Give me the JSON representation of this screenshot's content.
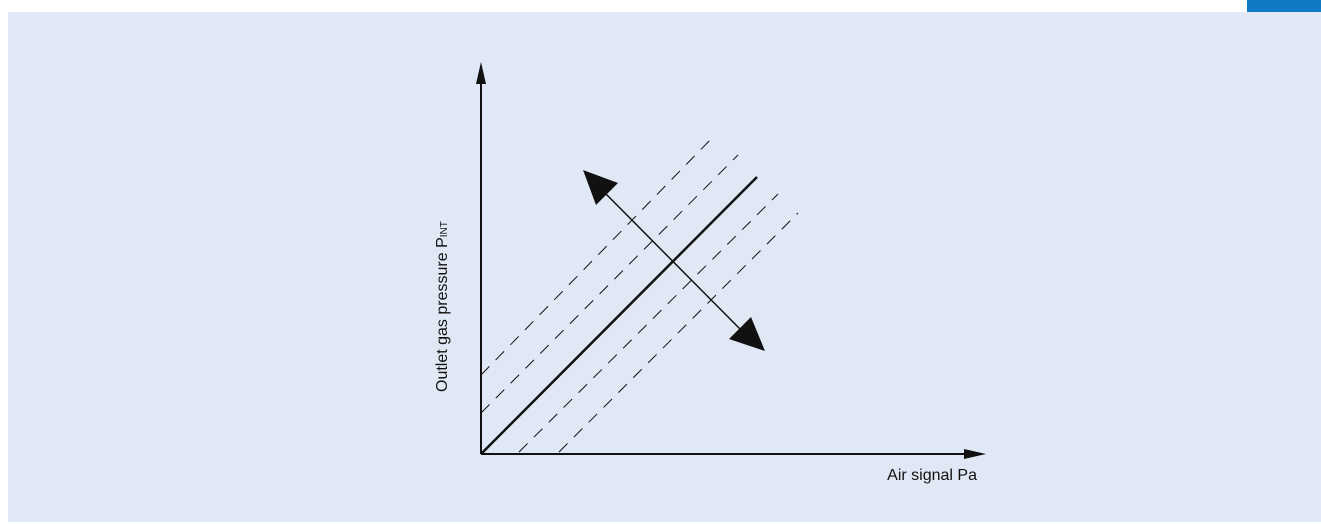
{
  "diagram": {
    "ylabel_main": "Outlet gas pressure P",
    "ylabel_sub": "INT",
    "xlabel": "Air signal Pa"
  },
  "colors": {
    "panel_bg": "#e1e8f5",
    "accent_tab": "#0f7ac6",
    "ink": "#111111"
  }
}
